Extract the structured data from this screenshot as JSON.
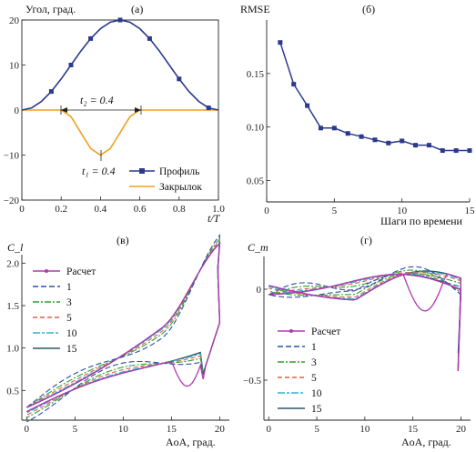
{
  "chart_data": [
    {
      "id": "a",
      "type": "line",
      "panel_label": "(а)",
      "ylabel": "Угол, град.",
      "xlabel": "t/T",
      "xlim": [
        0,
        1.0
      ],
      "ylim": [
        -20,
        20
      ],
      "xticks": [
        "0",
        "0.2",
        "0.4",
        "0.6",
        "0.8",
        "1.0"
      ],
      "yticks": [
        "20",
        "10",
        "0",
        "−10",
        "−20"
      ],
      "annotations": {
        "t2": "t₂ = 0.4",
        "t1": "t₁ = 0.4"
      },
      "series": [
        {
          "name": "Профиль",
          "color": "#2a3a8c",
          "marker": "square",
          "x": [
            0,
            0.05,
            0.1,
            0.15,
            0.2,
            0.25,
            0.3,
            0.35,
            0.4,
            0.45,
            0.5,
            0.55,
            0.6,
            0.65,
            0.7,
            0.75,
            0.8,
            0.85,
            0.9,
            0.95,
            1.0
          ],
          "y": [
            0,
            0.49,
            1.91,
            4.12,
            6.91,
            10.0,
            13.09,
            15.88,
            18.09,
            19.51,
            20,
            19.51,
            18.09,
            15.88,
            13.09,
            10.0,
            6.91,
            4.12,
            1.91,
            0.49,
            0
          ],
          "markers_x": [
            0.15,
            0.25,
            0.35,
            0.5,
            0.65,
            0.8,
            0.95
          ]
        },
        {
          "name": "Закрылок",
          "color": "#f0a020",
          "x": [
            0,
            0.2,
            0.25,
            0.3,
            0.35,
            0.4,
            0.45,
            0.5,
            0.55,
            0.6,
            1.0
          ],
          "y": [
            0,
            0,
            -1.46,
            -5.0,
            -8.54,
            -10,
            -8.54,
            -5.0,
            -1.46,
            0,
            0
          ]
        }
      ]
    },
    {
      "id": "b",
      "type": "line",
      "panel_label": "(б)",
      "ylabel": "RMSE",
      "xlabel": "Шаги по времени",
      "xlim": [
        0,
        15
      ],
      "ylim": [
        0.03,
        0.2
      ],
      "xticks": [
        "0",
        "5",
        "10",
        "15"
      ],
      "yticks": [
        "0.15",
        "0.10",
        "0.05"
      ],
      "series": [
        {
          "name": "RMSE",
          "color": "#2a3a8c",
          "marker": "square",
          "x": [
            1,
            2,
            3,
            4,
            5,
            6,
            7,
            8,
            9,
            10,
            11,
            12,
            13,
            14,
            15
          ],
          "y": [
            0.179,
            0.14,
            0.12,
            0.099,
            0.099,
            0.094,
            0.091,
            0.088,
            0.085,
            0.087,
            0.083,
            0.083,
            0.078,
            0.078,
            0.078
          ]
        }
      ]
    },
    {
      "id": "c",
      "type": "line",
      "panel_label": "(в)",
      "ylabel": "C_l",
      "xlabel": "AoA, град.",
      "xlim": [
        -0.5,
        21
      ],
      "ylim": [
        0.15,
        2.1
      ],
      "xticks": [
        "0",
        "5",
        "10",
        "15",
        "20"
      ],
      "yticks": [
        "2.0",
        "1.5",
        "1.0",
        "0.5"
      ],
      "legend": [
        "Расчет",
        "1",
        "3",
        "5",
        "10",
        "15"
      ]
    },
    {
      "id": "d",
      "type": "line",
      "panel_label": "(г)",
      "ylabel": "C_m",
      "xlabel": "AoA, град.",
      "xlim": [
        -0.5,
        21
      ],
      "ylim": [
        -0.72,
        0.18
      ],
      "xticks": [
        "0",
        "5",
        "10",
        "15",
        "20"
      ],
      "yticks": [
        "0",
        "−0.5"
      ],
      "legend": [
        "Расчет",
        "1",
        "3",
        "5",
        "10",
        "15"
      ]
    }
  ],
  "colors": {
    "calc": "#b03ab0",
    "n1": "#2f4fa8",
    "n3": "#2fa02f",
    "n5": "#e06040",
    "n10": "#30b0d0",
    "n15": "#2a5a6a"
  }
}
